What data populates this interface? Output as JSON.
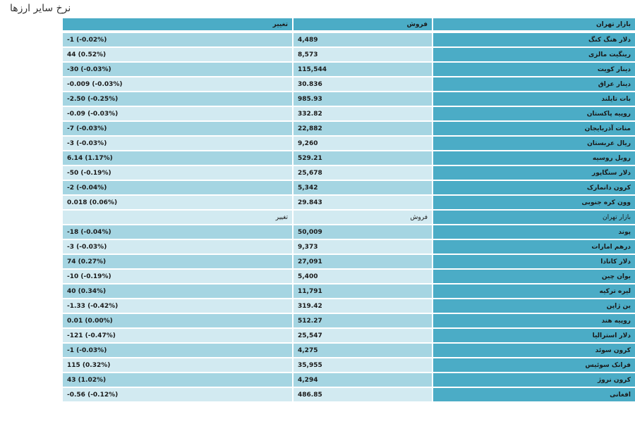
{
  "title": "نرخ سایر ارزها",
  "header": {
    "market": "بازار تهران",
    "sell": "فروش",
    "change": "تغییر"
  },
  "rows": [
    {
      "type": "data",
      "name": "دلار هنگ کنگ",
      "sell": "4,489",
      "change": "-1 (-0.02%)"
    },
    {
      "type": "data",
      "name": "رینگیت مالزی",
      "sell": "8,573",
      "change": "44 (0.52%)"
    },
    {
      "type": "data",
      "name": "دینار کویت",
      "sell": "115,544",
      "change": "-30 (-0.03%)"
    },
    {
      "type": "data",
      "name": "دینار عراق",
      "sell": "30.836",
      "change": "-0.009 (-0.03%)"
    },
    {
      "type": "data",
      "name": "بات تایلند",
      "sell": "985.93",
      "change": "-2.50 (-0.25%)"
    },
    {
      "type": "data",
      "name": "روپیه پاکستان",
      "sell": "332.82",
      "change": "-0.09 (-0.03%)"
    },
    {
      "type": "data",
      "name": "منات آذربایجان",
      "sell": "22,882",
      "change": "-7 (-0.03%)"
    },
    {
      "type": "data",
      "name": "ریال عربستان",
      "sell": "9,260",
      "change": "-3 (-0.03%)"
    },
    {
      "type": "data",
      "name": "روبل روسیه",
      "sell": "529.21",
      "change": "6.14 (1.17%)"
    },
    {
      "type": "data",
      "name": "دلار سنگاپور",
      "sell": "25,678",
      "change": "-50 (-0.19%)"
    },
    {
      "type": "data",
      "name": "کرون دانمارک",
      "sell": "5,342",
      "change": "-2 (-0.04%)"
    },
    {
      "type": "data",
      "name": "وون کره جنوبی",
      "sell": "29.843",
      "change": "0.018 (0.06%)"
    },
    {
      "type": "subhead",
      "name": "بازار تهران",
      "sell": "فروش",
      "change": "تغییر"
    },
    {
      "type": "data",
      "name": "پوند",
      "sell": "50,009",
      "change": "-18 (-0.04%)"
    },
    {
      "type": "data",
      "name": "درهم امارات",
      "sell": "9,373",
      "change": "-3 (-0.03%)"
    },
    {
      "type": "data",
      "name": "دلار کانادا",
      "sell": "27,091",
      "change": "74 (0.27%)"
    },
    {
      "type": "data",
      "name": "یوان چین",
      "sell": "5,400",
      "change": "-10 (-0.19%)"
    },
    {
      "type": "data",
      "name": "لیره ترکیه",
      "sell": "11,791",
      "change": "40 (0.34%)"
    },
    {
      "type": "data",
      "name": "ین ژاپن",
      "sell": "319.42",
      "change": "-1.33 (-0.42%)"
    },
    {
      "type": "data",
      "name": "روپیه هند",
      "sell": "512.27",
      "change": "0.01 (0.00%)"
    },
    {
      "type": "data",
      "name": "دلار استرالیا",
      "sell": "25,547",
      "change": "-121 (-0.47%)"
    },
    {
      "type": "data",
      "name": "کرون سوئد",
      "sell": "4,275",
      "change": "-1 (-0.03%)"
    },
    {
      "type": "data",
      "name": "فرانک سوئیس",
      "sell": "35,955",
      "change": "115 (0.32%)"
    },
    {
      "type": "data",
      "name": "کرون نروژ",
      "sell": "4,294",
      "change": "43 (1.02%)"
    },
    {
      "type": "data",
      "name": "افغانی",
      "sell": "486.85",
      "change": "-0.56 (-0.12%)"
    }
  ]
}
